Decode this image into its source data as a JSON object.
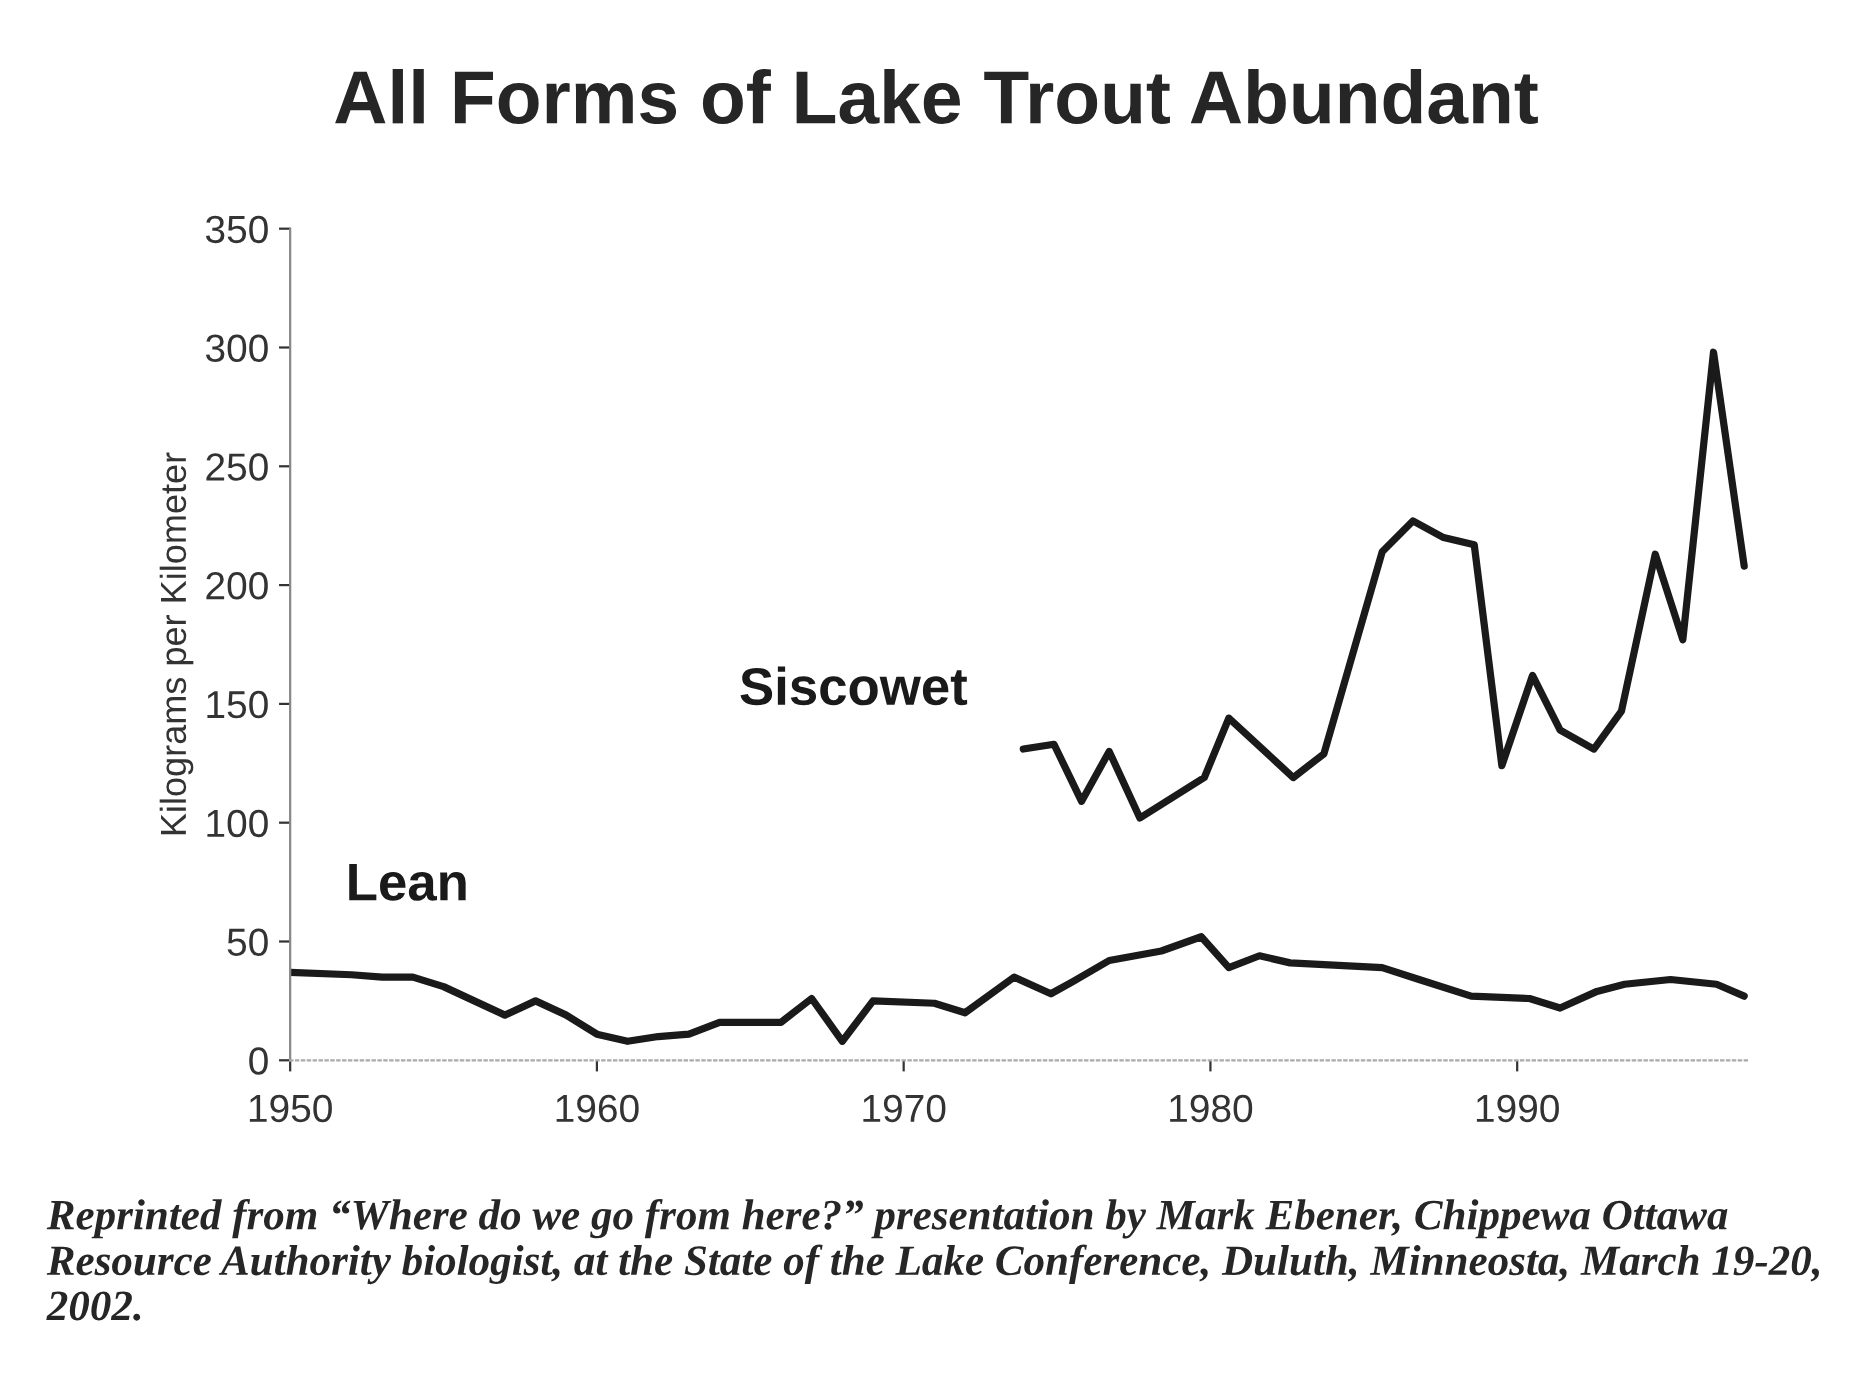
{
  "chart_data": {
    "type": "line",
    "title": "All Forms of Lake Trout Abundant",
    "ylabel": "Kilograms per Kilometer",
    "xlim": [
      1950,
      1997.6
    ],
    "xticks": [
      1950,
      1960,
      1970,
      1980,
      1990
    ],
    "ylim": [
      0,
      350
    ],
    "yticks": [
      0,
      50,
      100,
      150,
      200,
      250,
      300,
      350
    ],
    "grid": false,
    "legend": false,
    "marker": "none",
    "line_style": "solid",
    "series": [
      {
        "name": "Lean",
        "color": "#1a1a1a",
        "x": [
          1950,
          1952,
          1953,
          1954,
          1955,
          1956,
          1957,
          1958,
          1959,
          1960,
          1961,
          1962,
          1963,
          1964,
          1966,
          1967,
          1968,
          1969,
          1971,
          1972,
          1973.6,
          1974.8,
          1975.5,
          1976.7,
          1978.4,
          1979.7,
          1980.6,
          1981.6,
          1982.6,
          1985.6,
          1986.8,
          1988.5,
          1990.4,
          1991.4,
          1992.6,
          1993.5,
          1995,
          1996.5,
          1997.4
        ],
        "values": [
          37,
          36,
          35,
          35,
          31,
          25,
          19,
          25,
          19,
          11,
          8,
          10,
          11,
          16,
          16,
          26,
          8,
          25,
          24,
          20,
          35,
          28,
          33,
          42,
          46,
          52,
          39,
          44,
          41,
          39,
          34,
          27,
          26,
          22,
          29,
          32,
          34,
          32,
          27
        ]
      },
      {
        "name": "Siscowet",
        "color": "#1a1a1a",
        "x": [
          1973.9,
          1974.9,
          1975.8,
          1976.7,
          1977.7,
          1979.8,
          1980.6,
          1982.7,
          1983.7,
          1985.6,
          1986.6,
          1987.6,
          1988.6,
          1989.5,
          1990.5,
          1991.4,
          1992.5,
          1993.4,
          1994.5,
          1995.4,
          1996.4,
          1997.4
        ],
        "values": [
          131,
          133,
          109,
          130,
          102,
          119,
          144,
          119,
          129,
          214,
          227,
          220,
          217,
          124,
          162,
          139,
          131,
          147,
          213,
          177,
          298,
          208
        ]
      }
    ],
    "annotations": [
      "Reprinted from “Where do we go from here?” presentation by Mark Ebener, Chippewa Ottawa Resource Authority biologist, at the State of the Lake Conference, Duluth, Minneosta, March 19-20, 2002."
    ]
  }
}
